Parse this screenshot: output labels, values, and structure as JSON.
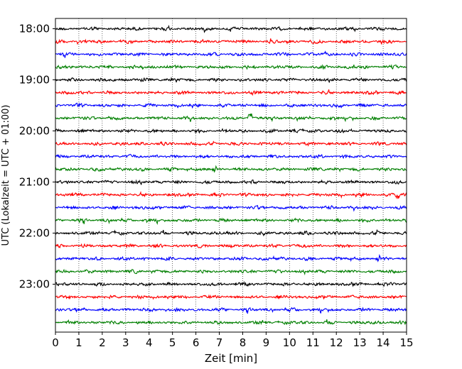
{
  "chart_data": {
    "type": "line",
    "title": "",
    "xlabel": "Zeit  [min]",
    "ylabel": "UTC (Lokalzeit = UTC + 01:00)",
    "xlim": [
      0,
      15
    ],
    "x_ticks": [
      "0",
      "1",
      "2",
      "3",
      "4",
      "5",
      "6",
      "7",
      "8",
      "9",
      "10",
      "11",
      "12",
      "13",
      "14",
      "15"
    ],
    "y_tick_labels": [
      "18:00",
      "19:00",
      "20:00",
      "21:00",
      "22:00",
      "23:00"
    ],
    "grid": "vertical dotted lines at each minute",
    "trace_start_times": [
      "18:00",
      "18:15",
      "18:30",
      "18:45",
      "19:00",
      "19:15",
      "19:30",
      "19:45",
      "20:00",
      "20:15",
      "20:30",
      "20:45",
      "21:00",
      "21:15",
      "21:30",
      "21:45",
      "22:00",
      "22:15",
      "22:30",
      "22:45",
      "23:00",
      "23:15",
      "23:30",
      "23:45"
    ],
    "trace_colors": [
      "#000000",
      "#ff0000",
      "#0000ff",
      "#007f00"
    ],
    "annotations": [
      {
        "trace": "19:45",
        "x_min": 8.3,
        "note": "small spike"
      },
      {
        "trace": "21:15",
        "x_min": 14.6,
        "note": "small spike"
      }
    ]
  }
}
